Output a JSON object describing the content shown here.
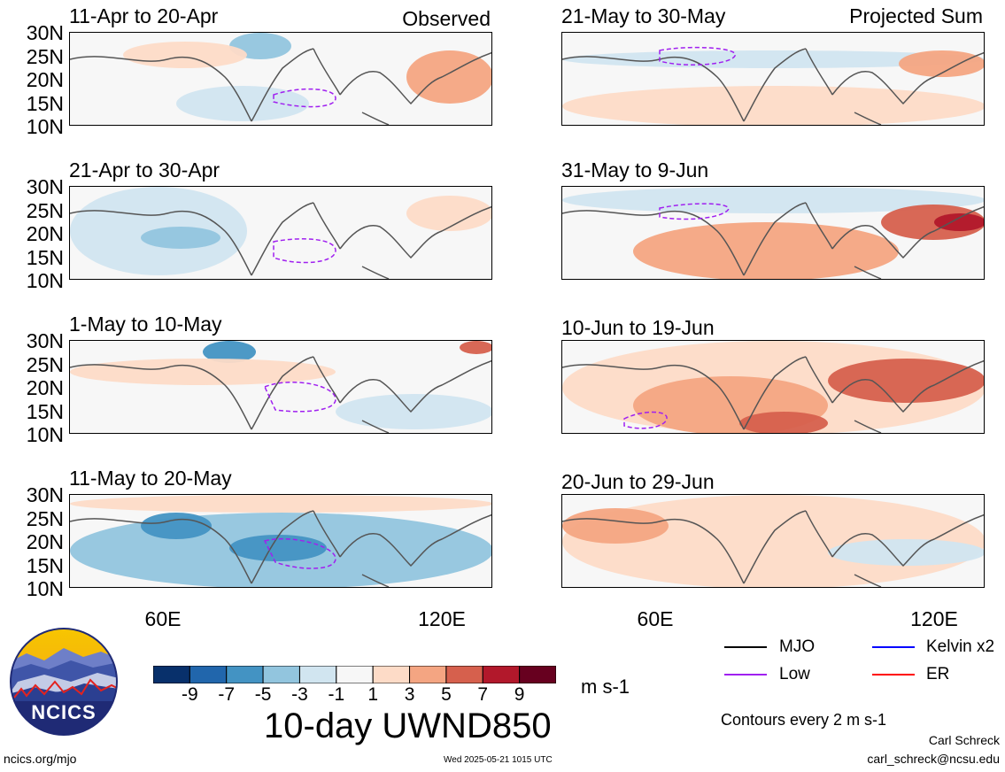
{
  "chart_data": {
    "type": "heatmap",
    "variable_title": "10-day UWND850",
    "units": "m s-1",
    "contour_note": "Contours every 2 m s-1",
    "colorbar": {
      "tick_labels": [
        "-9",
        "-7",
        "-5",
        "-3",
        "-1",
        "1",
        "3",
        "5",
        "7",
        "9"
      ],
      "colors": [
        "#08306b",
        "#2166ac",
        "#4393c3",
        "#92c5de",
        "#d1e5f0",
        "#f7f7f7",
        "#fddbc7",
        "#f4a582",
        "#d6604d",
        "#b2182b",
        "#67001f"
      ]
    },
    "y_ticks": [
      "30N",
      "25N",
      "20N",
      "15N",
      "10N"
    ],
    "x_ticks": [
      "60E",
      "120E"
    ],
    "column_labels": {
      "left": "Observed",
      "right": "Projected Sum"
    },
    "panels": [
      {
        "title": "11-Apr to 20-Apr"
      },
      {
        "title": "21-Apr to 30-Apr"
      },
      {
        "title": "1-May to 10-May"
      },
      {
        "title": "11-May to 20-May"
      },
      {
        "title": "21-May to 30-May"
      },
      {
        "title": "31-May to 9-Jun"
      },
      {
        "title": "10-Jun to 19-Jun"
      },
      {
        "title": "20-Jun to 29-Jun"
      }
    ],
    "legend": [
      {
        "label": "MJO",
        "color": "#000000"
      },
      {
        "label": "Kelvin x2",
        "color": "#0000ff"
      },
      {
        "label": "Low",
        "color": "#a020f0"
      },
      {
        "label": "ER",
        "color": "#ff0000"
      }
    ]
  },
  "footer": {
    "site": "ncics.org/mjo",
    "timestamp": "Wed 2025-05-21 1015 UTC",
    "author": "Carl Schreck",
    "email": "carl_schreck@ncsu.edu",
    "logo_text": "NCICS"
  }
}
